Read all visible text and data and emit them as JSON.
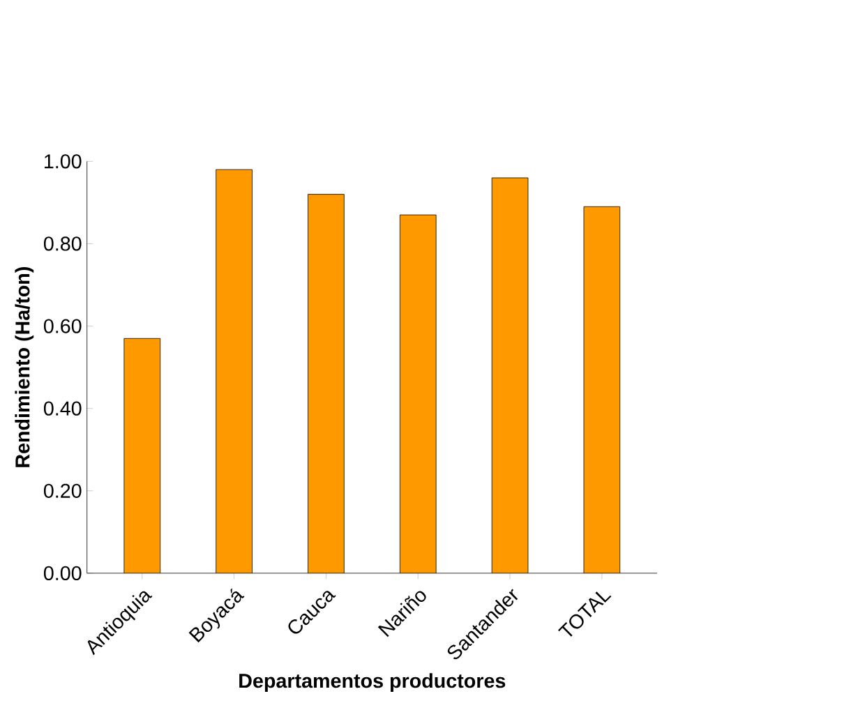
{
  "chart_data": {
    "type": "bar",
    "xlabel": "Departamentos productores",
    "ylabel": "Rendimiento (Ha/ton)",
    "categories": [
      "Antioquia",
      "Boyacá",
      "Cauca",
      "Nariño",
      "Santander",
      "TOTAL"
    ],
    "values": [
      0.57,
      0.98,
      0.92,
      0.87,
      0.96,
      0.89
    ],
    "color": "#ff9900",
    "ylim": [
      0,
      1
    ],
    "yticks": [
      {
        "value": 0,
        "label": "0.00"
      },
      {
        "value": 0.2,
        "label": "0.20"
      },
      {
        "value": 0.4,
        "label": "0.40"
      },
      {
        "value": 0.6,
        "label": "0.60"
      },
      {
        "value": 0.8,
        "label": "0.80"
      },
      {
        "value": 1,
        "label": "1.00"
      }
    ]
  }
}
